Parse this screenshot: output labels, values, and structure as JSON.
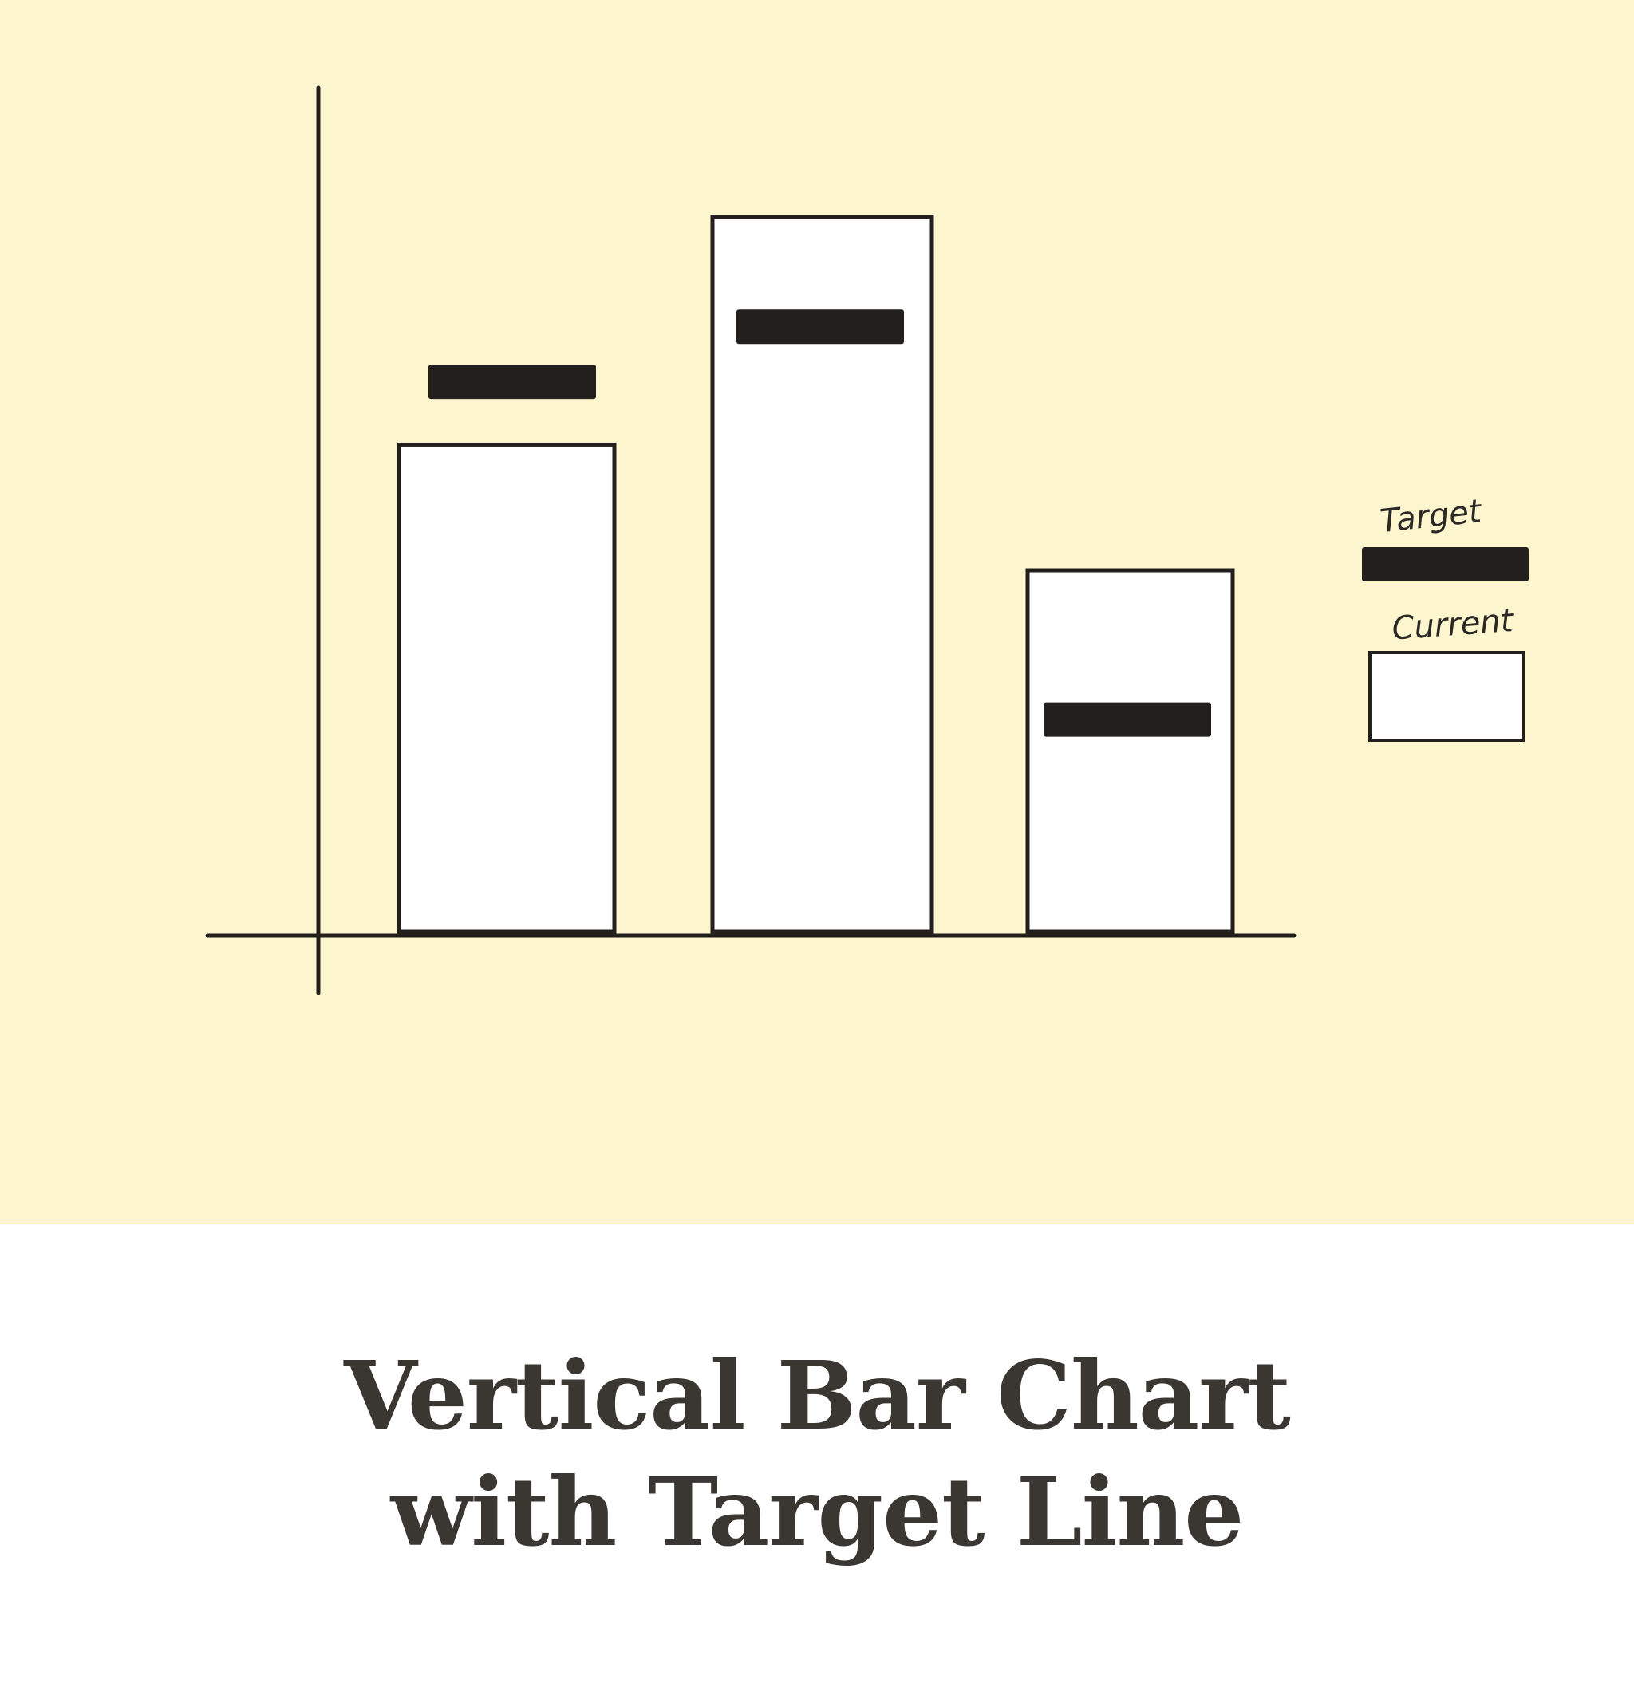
{
  "caption": {
    "title": "Vertical Bar Chart with Target Line"
  },
  "legend": {
    "target_label": "Target",
    "current_label": "Current"
  },
  "colors": {
    "background": "#fdf5cd",
    "ink": "#231f1c",
    "bar_fill": "#ffffff",
    "caption_text": "#3a3733"
  },
  "chart_data": {
    "type": "bar",
    "categories": [
      "",
      "",
      ""
    ],
    "series": [
      {
        "name": "Current",
        "values": [
          62,
          91,
          46
        ]
      },
      {
        "name": "Target",
        "values": [
          70,
          77,
          27
        ]
      }
    ],
    "title": "",
    "xlabel": "",
    "ylabel": "",
    "ylim": [
      0,
      105
    ],
    "grid": false,
    "legend_position": "right"
  }
}
